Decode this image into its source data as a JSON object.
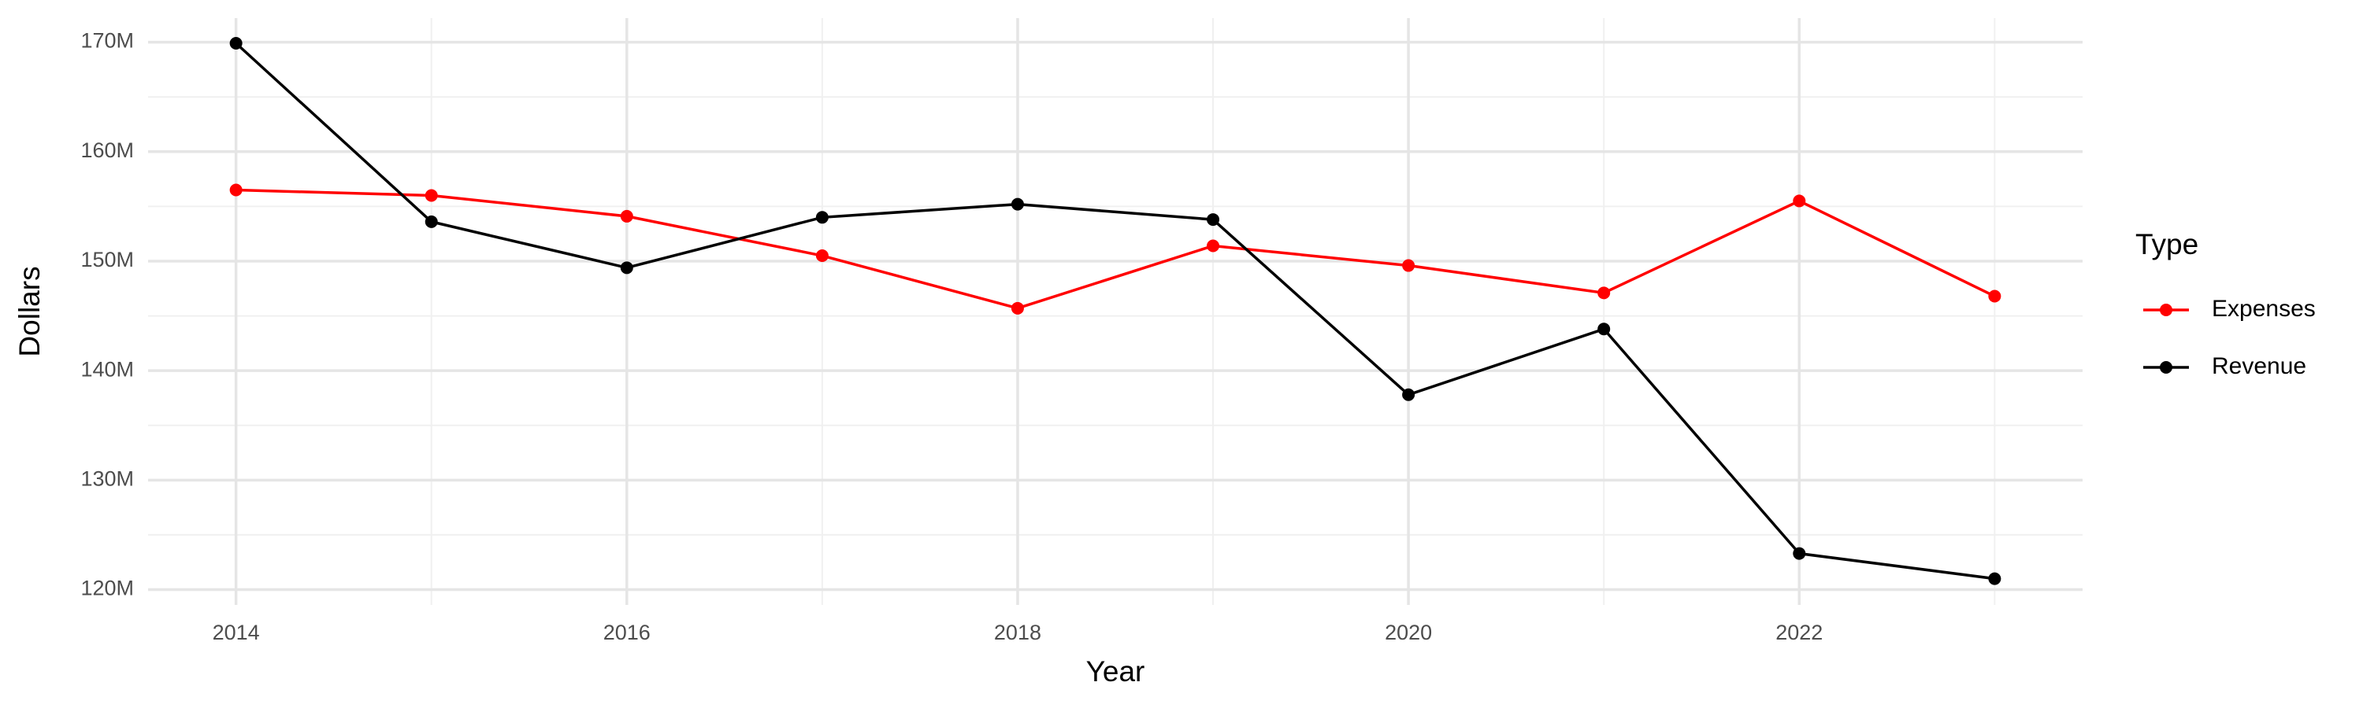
{
  "chart_data": {
    "type": "line",
    "x_label": "Year",
    "y_label": "Dollars",
    "legend_title": "Type",
    "legend_position": "right",
    "grid": true,
    "x": [
      2014,
      2015,
      2016,
      2017,
      2018,
      2019,
      2020,
      2021,
      2022,
      2023
    ],
    "series": [
      {
        "name": "Expenses",
        "color": "#ff0000",
        "values": [
          156500000,
          156000000,
          154100000,
          150500000,
          145700000,
          151400000,
          149600000,
          147100000,
          155500000,
          146800000
        ]
      },
      {
        "name": "Revenue",
        "color": "#000000",
        "values": [
          169900000,
          153600000,
          149400000,
          154000000,
          155200000,
          153800000,
          137800000,
          143800000,
          123300000,
          121000000
        ]
      }
    ],
    "xlim": [
      2013.55,
      2023.45
    ],
    "xticks": [
      2014,
      2016,
      2018,
      2020,
      2022
    ],
    "ylim": [
      118600000,
      172200000
    ],
    "yticks": [
      {
        "value": 120000000,
        "label": "120M"
      },
      {
        "value": 130000000,
        "label": "130M"
      },
      {
        "value": 140000000,
        "label": "140M"
      },
      {
        "value": 150000000,
        "label": "150M"
      },
      {
        "value": 160000000,
        "label": "160M"
      },
      {
        "value": 170000000,
        "label": "170M"
      }
    ]
  }
}
